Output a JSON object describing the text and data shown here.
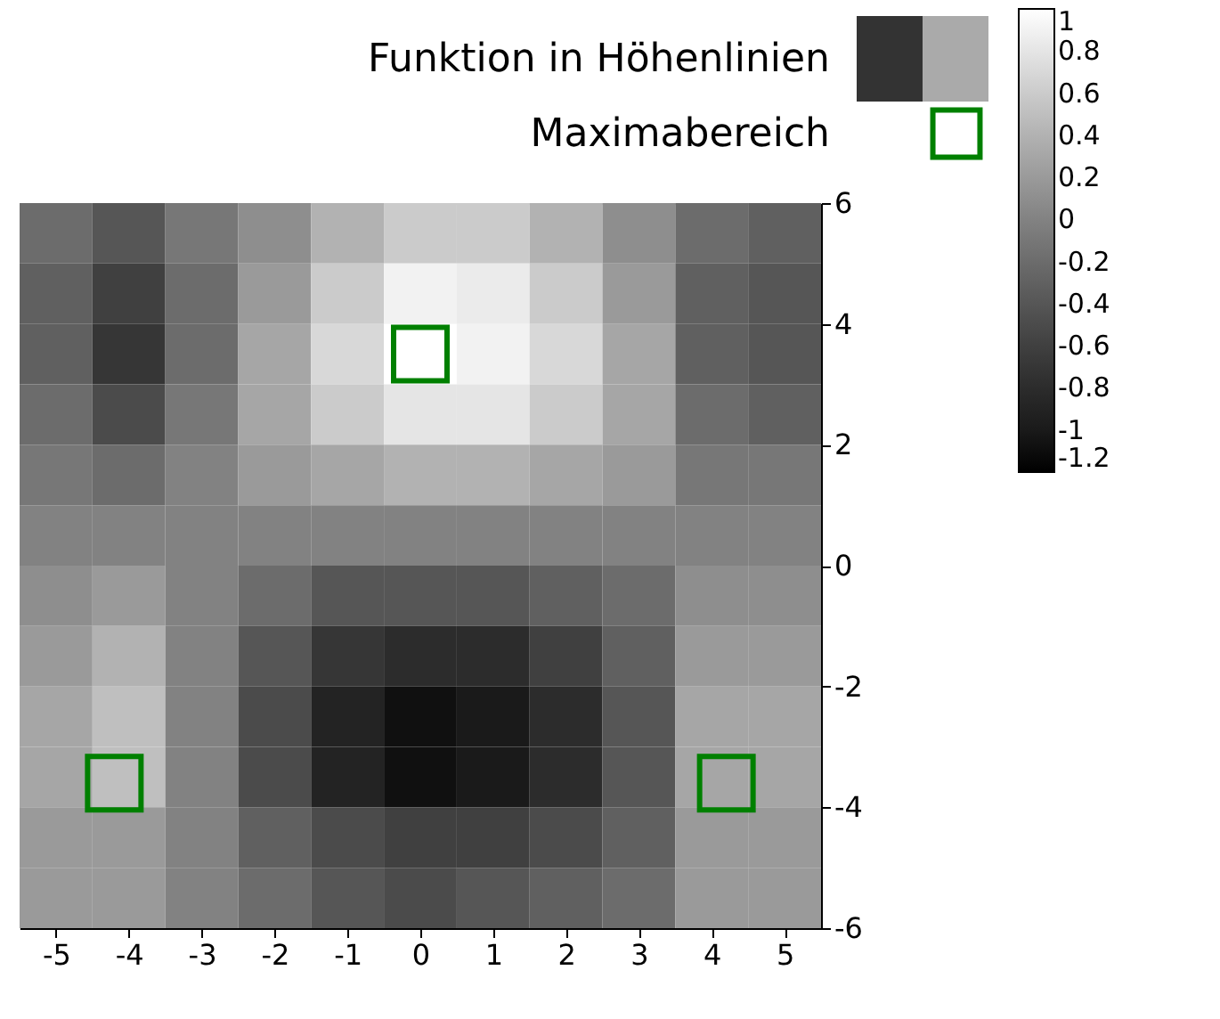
{
  "chart_data": {
    "type": "heatmap",
    "x": [
      -5,
      -4,
      -3,
      -2,
      -1,
      0,
      1,
      2,
      3,
      4,
      5
    ],
    "y": [
      5.5,
      4.5,
      3.5,
      2.5,
      1.5,
      0.5,
      -0.5,
      -1.5,
      -2.5,
      -3.5,
      -4.5,
      -5.5
    ],
    "cells": [
      [
        -0.2,
        -0.4,
        -0.1,
        0.1,
        0.4,
        0.6,
        0.6,
        0.4,
        0.1,
        -0.2,
        -0.3
      ],
      [
        -0.3,
        -0.6,
        -0.2,
        0.2,
        0.6,
        0.9,
        0.85,
        0.6,
        0.2,
        -0.3,
        -0.4
      ],
      [
        -0.3,
        -0.7,
        -0.2,
        0.3,
        0.7,
        1.0,
        0.9,
        0.7,
        0.3,
        -0.3,
        -0.4
      ],
      [
        -0.2,
        -0.5,
        -0.1,
        0.3,
        0.6,
        0.8,
        0.8,
        0.6,
        0.3,
        -0.2,
        -0.3
      ],
      [
        -0.1,
        -0.2,
        0,
        0.2,
        0.3,
        0.4,
        0.4,
        0.3,
        0.2,
        -0.1,
        -0.1
      ],
      [
        0,
        0,
        0,
        0,
        0,
        0,
        0,
        0,
        0,
        0,
        0
      ],
      [
        0.1,
        0.2,
        0,
        -0.2,
        -0.4,
        -0.4,
        -0.4,
        -0.3,
        -0.2,
        0.1,
        0.1
      ],
      [
        0.2,
        0.4,
        0,
        -0.4,
        -0.7,
        -0.8,
        -0.8,
        -0.6,
        -0.3,
        0.2,
        0.2
      ],
      [
        0.3,
        0.5,
        0,
        -0.5,
        -0.9,
        -1.1,
        -1.0,
        -0.8,
        -0.4,
        0.3,
        0.3
      ],
      [
        0.3,
        0.5,
        0,
        -0.5,
        -0.9,
        -1.1,
        -1.0,
        -0.8,
        -0.4,
        0.3,
        0.3
      ],
      [
        0.2,
        0.2,
        0,
        -0.3,
        -0.5,
        -0.6,
        -0.6,
        -0.5,
        -0.3,
        0.2,
        0.2
      ],
      [
        0.2,
        0.2,
        0,
        -0.2,
        -0.4,
        -0.5,
        -0.4,
        -0.3,
        -0.2,
        0.2,
        0.2
      ]
    ],
    "xlim": [
      -5.5,
      5.5
    ],
    "xticks": [
      -5,
      -4,
      -3,
      -2,
      -1,
      0,
      1,
      2,
      3,
      4,
      5
    ],
    "ylim": [
      -6,
      6
    ],
    "yticks": [
      -6,
      -4,
      -2,
      0,
      2,
      4,
      6
    ],
    "clim": [
      -1.2,
      1
    ],
    "cticks": [
      -1.2,
      -1,
      -0.8,
      -0.6,
      -0.4,
      -0.2,
      0,
      0.2,
      0.4,
      0.6,
      0.8,
      1
    ],
    "legend_title": "Funktion in Höhenlinien",
    "series": [
      {
        "name": "Maximabereich",
        "type": "scatter",
        "color": "#008000",
        "marker": "square",
        "x": [
          -4.2,
          0,
          4.2
        ],
        "values": [
          -3.6,
          3.5,
          -3.6
        ]
      }
    ],
    "legend": "top right",
    "grid": false
  }
}
